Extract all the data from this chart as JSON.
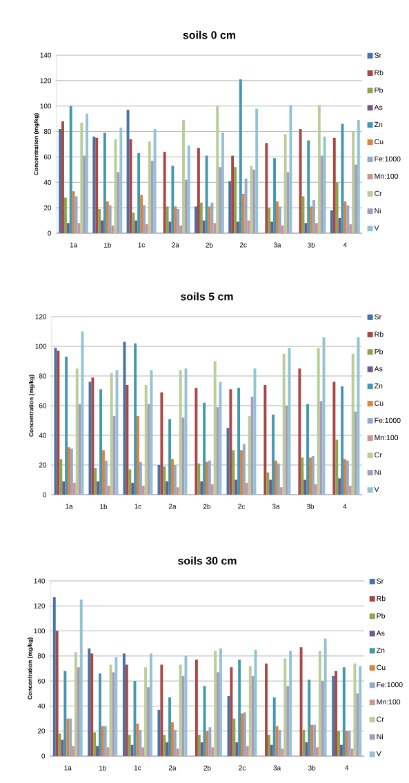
{
  "chart_data": [
    {
      "type": "bar",
      "title": "soils 0 cm",
      "ylabel": "Concentration (mg/kg)",
      "categories": [
        "1a",
        "1b",
        "1c",
        "2a",
        "2b",
        "2c",
        "3a",
        "3b",
        "4"
      ],
      "ylim": [
        0,
        140
      ],
      "yticks": [
        0,
        20,
        40,
        60,
        80,
        100,
        120,
        140
      ],
      "grid": "y",
      "legend": "right",
      "series": [
        {
          "name": "Sr",
          "color": "#4572a7",
          "values": [
            82,
            76,
            97,
            null,
            21,
            41,
            null,
            null,
            18
          ]
        },
        {
          "name": "Rb",
          "color": "#aa4643",
          "values": [
            88,
            75,
            74,
            64,
            67,
            61,
            71,
            82,
            75
          ]
        },
        {
          "name": "Pb",
          "color": "#89a54e",
          "values": [
            28,
            19,
            16,
            21,
            24,
            52,
            20,
            29,
            40
          ]
        },
        {
          "name": "As",
          "color": "#71588f",
          "values": [
            8,
            10,
            10,
            9,
            10,
            9,
            9,
            8,
            12
          ]
        },
        {
          "name": "Zn",
          "color": "#4198af",
          "values": [
            100,
            79,
            63,
            53,
            61,
            121,
            59,
            73,
            86
          ]
        },
        {
          "name": "Cu",
          "color": "#db843d",
          "values": [
            33,
            25,
            30,
            21,
            21,
            31,
            25,
            21,
            25
          ]
        },
        {
          "name": "Fe:1000",
          "color": "#93a9cf",
          "values": [
            29,
            22,
            22,
            19,
            24,
            43,
            21,
            26,
            22
          ]
        },
        {
          "name": "Mn:100",
          "color": "#d19392",
          "values": [
            8,
            6,
            7,
            6,
            8,
            10,
            6,
            8,
            7
          ]
        },
        {
          "name": "Cr",
          "color": "#b9cd96",
          "values": [
            87,
            74,
            72,
            89,
            100,
            53,
            78,
            101,
            80
          ]
        },
        {
          "name": "Ni",
          "color": "#a99bbd",
          "values": [
            61,
            48,
            57,
            42,
            52,
            50,
            48,
            61,
            54
          ]
        },
        {
          "name": "V",
          "color": "#92c3d5",
          "values": [
            94,
            83,
            82,
            69,
            79,
            98,
            101,
            76,
            89
          ]
        }
      ]
    },
    {
      "type": "bar",
      "title": "soils 5 cm",
      "ylabel": "Concentration (mg/kg)",
      "categories": [
        "1a",
        "1b",
        "1c",
        "2a",
        "2b",
        "2c",
        "3a",
        "3b",
        "4"
      ],
      "ylim": [
        0,
        120
      ],
      "yticks": [
        0,
        20,
        40,
        60,
        80,
        100,
        120
      ],
      "grid": "y",
      "legend": "right",
      "series": [
        {
          "name": "Sr",
          "color": "#4572a7",
          "values": [
            99,
            76,
            103,
            20,
            null,
            45,
            null,
            null,
            null
          ]
        },
        {
          "name": "Rb",
          "color": "#aa4643",
          "values": [
            97,
            79,
            74,
            69,
            72,
            71,
            74,
            85,
            76
          ]
        },
        {
          "name": "Pb",
          "color": "#89a54e",
          "values": [
            24,
            18,
            17,
            19,
            21,
            30,
            15,
            25,
            37
          ]
        },
        {
          "name": "As",
          "color": "#71588f",
          "values": [
            9,
            9,
            8,
            9,
            9,
            10,
            10,
            10,
            11
          ]
        },
        {
          "name": "Zn",
          "color": "#4198af",
          "values": [
            93,
            71,
            102,
            51,
            62,
            72,
            54,
            61,
            73
          ]
        },
        {
          "name": "Cu",
          "color": "#db843d",
          "values": [
            32,
            30,
            53,
            24,
            22,
            30,
            23,
            25,
            24
          ]
        },
        {
          "name": "Fe:1000",
          "color": "#93a9cf",
          "values": [
            31,
            23,
            22,
            20,
            23,
            34,
            21,
            26,
            23
          ]
        },
        {
          "name": "Mn:100",
          "color": "#d19392",
          "values": [
            8,
            6,
            6,
            5,
            7,
            8,
            5,
            7,
            6
          ]
        },
        {
          "name": "Cr",
          "color": "#b9cd96",
          "values": [
            85,
            82,
            74,
            84,
            90,
            53,
            95,
            99,
            95
          ]
        },
        {
          "name": "Ni",
          "color": "#a99bbd",
          "values": [
            61,
            53,
            61,
            52,
            59,
            66,
            60,
            63,
            56
          ]
        },
        {
          "name": "V",
          "color": "#92c3d5",
          "values": [
            110,
            84,
            84,
            85,
            76,
            85,
            99,
            106,
            106
          ]
        }
      ]
    },
    {
      "type": "bar",
      "title": "soils 30 cm",
      "ylabel": "Concentration (mg/kg)",
      "categories": [
        "1a",
        "1b",
        "1c",
        "2a",
        "2b",
        "2c",
        "3a",
        "3b",
        "4"
      ],
      "ylim": [
        0,
        140
      ],
      "yticks": [
        0,
        20,
        40,
        60,
        80,
        100,
        120,
        140
      ],
      "grid": "y",
      "legend": "right",
      "series": [
        {
          "name": "Sr",
          "color": "#4572a7",
          "values": [
            127,
            86,
            82,
            37,
            null,
            48,
            null,
            null,
            64
          ]
        },
        {
          "name": "Rb",
          "color": "#aa4643",
          "values": [
            100,
            82,
            73,
            73,
            77,
            71,
            74,
            87,
            68
          ]
        },
        {
          "name": "Pb",
          "color": "#89a54e",
          "values": [
            18,
            19,
            17,
            17,
            17,
            30,
            17,
            21,
            20
          ]
        },
        {
          "name": "As",
          "color": "#71588f",
          "values": [
            13,
            8,
            9,
            11,
            11,
            11,
            9,
            11,
            9
          ]
        },
        {
          "name": "Zn",
          "color": "#4198af",
          "values": [
            68,
            66,
            60,
            47,
            56,
            77,
            47,
            61,
            71
          ]
        },
        {
          "name": "Cu",
          "color": "#db843d",
          "values": [
            30,
            24,
            26,
            27,
            20,
            34,
            24,
            25,
            20
          ]
        },
        {
          "name": "Fe:1000",
          "color": "#93a9cf",
          "values": [
            30,
            24,
            21,
            21,
            23,
            35,
            21,
            25,
            20
          ]
        },
        {
          "name": "Mn:100",
          "color": "#d19392",
          "values": [
            8,
            7,
            7,
            6,
            7,
            8,
            6,
            7,
            6
          ]
        },
        {
          "name": "Cr",
          "color": "#b9cd96",
          "values": [
            83,
            73,
            71,
            73,
            84,
            72,
            78,
            84,
            74
          ]
        },
        {
          "name": "Ni",
          "color": "#a99bbd",
          "values": [
            71,
            67,
            55,
            64,
            67,
            64,
            56,
            60,
            50
          ]
        },
        {
          "name": "V",
          "color": "#92c3d5",
          "values": [
            125,
            79,
            82,
            80,
            86,
            85,
            84,
            94,
            72
          ]
        }
      ]
    }
  ]
}
